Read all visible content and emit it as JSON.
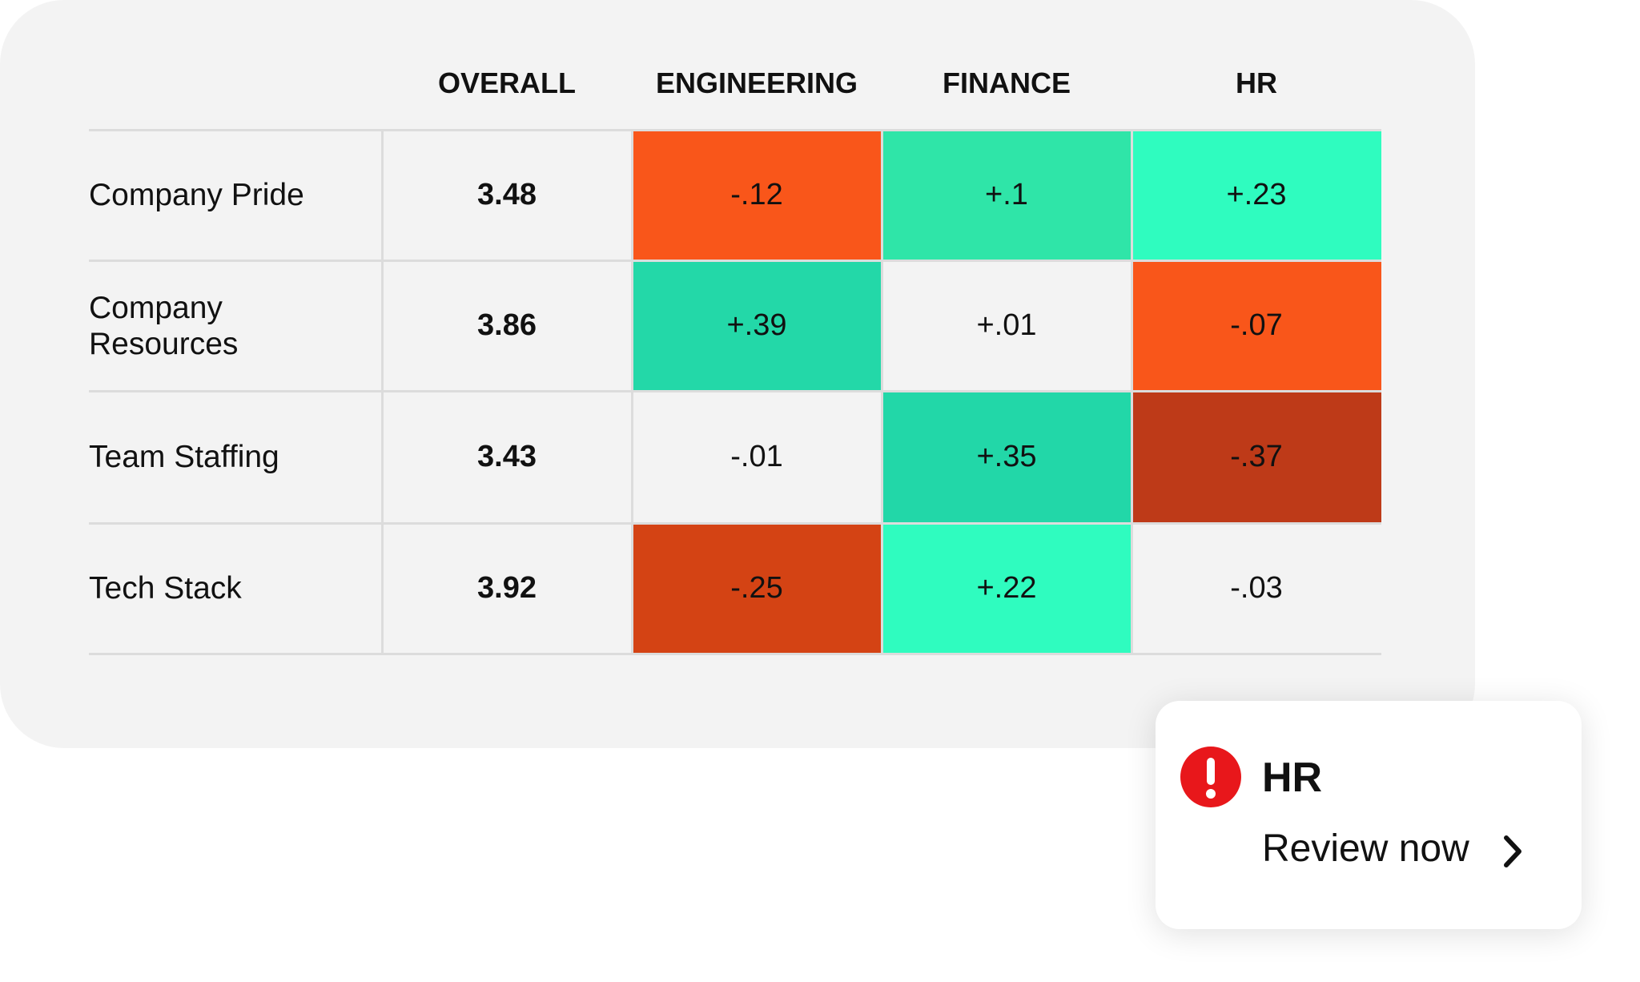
{
  "table": {
    "columns": [
      "OVERALL",
      "ENGINEERING",
      "FINANCE",
      "HR"
    ],
    "rows": [
      {
        "label": "Company Pride",
        "overall": "3.48",
        "cells": [
          {
            "text": "-.12",
            "color": "#f9561a"
          },
          {
            "text": "+.1",
            "color": "#2fe5a8"
          },
          {
            "text": "+.23",
            "color": "#2ffcbf"
          }
        ]
      },
      {
        "label": "Company Resources",
        "overall": "3.86",
        "cells": [
          {
            "text": "+.39",
            "color": "#23d8a8"
          },
          {
            "text": "+.01"
          },
          {
            "text": "-.07",
            "color": "#f9561a"
          }
        ]
      },
      {
        "label": "Team Staffing",
        "overall": "3.43",
        "cells": [
          {
            "text": "-.01"
          },
          {
            "text": "+.35",
            "color": "#22d7a8"
          },
          {
            "text": "-.37",
            "color": "#be3a18"
          }
        ]
      },
      {
        "label": "Tech Stack",
        "overall": "3.92",
        "cells": [
          {
            "text": "-.25",
            "color": "#d44314"
          },
          {
            "text": "+.22",
            "color": "#2ffcbf"
          },
          {
            "text": "-.03"
          }
        ]
      }
    ]
  },
  "alert": {
    "title": "HR",
    "action": "Review now"
  }
}
